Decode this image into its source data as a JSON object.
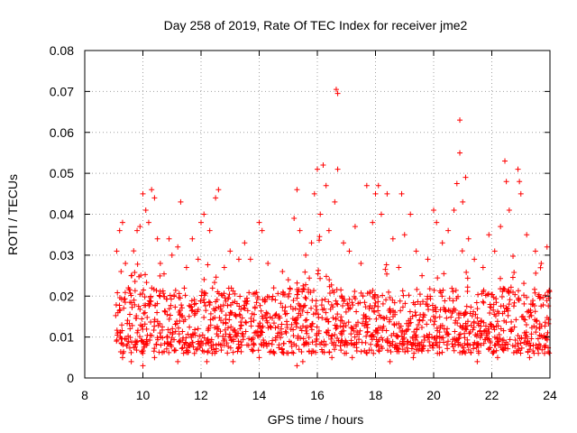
{
  "chart_data": {
    "type": "scatter",
    "title": "Day 258 of 2019, Rate Of TEC Index for receiver jme2",
    "xlabel": "GPS time / hours",
    "ylabel": "ROTI / TECUs",
    "xlim": [
      8,
      24
    ],
    "ylim": [
      0,
      0.08
    ],
    "x_ticks": [
      "8",
      "10",
      "12",
      "14",
      "16",
      "18",
      "20",
      "22",
      "24"
    ],
    "y_ticks": [
      "0",
      "0.01",
      "0.02",
      "0.03",
      "0.04",
      "0.05",
      "0.06",
      "0.07",
      "0.08"
    ],
    "grid": true,
    "marker": "+",
    "color": "#ff0000",
    "series": [
      {
        "name": "ROTI",
        "points": [
          [
            9.1,
            0.031
          ],
          [
            9.2,
            0.036
          ],
          [
            9.3,
            0.038
          ],
          [
            9.25,
            0.026
          ],
          [
            9.4,
            0.028
          ],
          [
            9.5,
            0.022
          ],
          [
            9.6,
            0.025
          ],
          [
            9.8,
            0.036
          ],
          [
            9.9,
            0.037
          ],
          [
            10.0,
            0.045
          ],
          [
            10.1,
            0.041
          ],
          [
            10.3,
            0.046
          ],
          [
            10.4,
            0.044
          ],
          [
            10.5,
            0.034
          ],
          [
            10.2,
            0.038
          ],
          [
            10.6,
            0.028
          ],
          [
            10.9,
            0.034
          ],
          [
            11.0,
            0.03
          ],
          [
            11.3,
            0.043
          ],
          [
            11.2,
            0.032
          ],
          [
            11.5,
            0.027
          ],
          [
            11.7,
            0.034
          ],
          [
            11.9,
            0.029
          ],
          [
            12.0,
            0.038
          ],
          [
            12.1,
            0.04
          ],
          [
            12.3,
            0.036
          ],
          [
            12.5,
            0.044
          ],
          [
            12.6,
            0.046
          ],
          [
            12.8,
            0.027
          ],
          [
            13.0,
            0.031
          ],
          [
            13.3,
            0.029
          ],
          [
            13.5,
            0.033
          ],
          [
            13.7,
            0.029
          ],
          [
            14.0,
            0.038
          ],
          [
            14.1,
            0.036
          ],
          [
            14.3,
            0.028
          ],
          [
            14.5,
            0.022
          ],
          [
            14.8,
            0.026
          ],
          [
            15.0,
            0.024
          ],
          [
            15.2,
            0.039
          ],
          [
            15.3,
            0.046
          ],
          [
            15.4,
            0.036
          ],
          [
            15.6,
            0.03
          ],
          [
            15.8,
            0.033
          ],
          [
            15.9,
            0.045
          ],
          [
            16.0,
            0.051
          ],
          [
            16.1,
            0.04
          ],
          [
            16.2,
            0.052
          ],
          [
            16.3,
            0.047
          ],
          [
            16.4,
            0.036
          ],
          [
            16.6,
            0.043
          ],
          [
            16.65,
            0.0705
          ],
          [
            16.7,
            0.0695
          ],
          [
            16.7,
            0.051
          ],
          [
            16.9,
            0.033
          ],
          [
            17.1,
            0.031
          ],
          [
            17.3,
            0.037
          ],
          [
            17.5,
            0.028
          ],
          [
            17.7,
            0.047
          ],
          [
            17.9,
            0.038
          ],
          [
            18.0,
            0.045
          ],
          [
            18.1,
            0.047
          ],
          [
            18.2,
            0.04
          ],
          [
            18.4,
            0.045
          ],
          [
            18.6,
            0.034
          ],
          [
            18.8,
            0.027
          ],
          [
            18.9,
            0.045
          ],
          [
            19.0,
            0.035
          ],
          [
            19.2,
            0.04
          ],
          [
            19.4,
            0.031
          ],
          [
            19.6,
            0.025
          ],
          [
            19.8,
            0.029
          ],
          [
            20.0,
            0.041
          ],
          [
            20.1,
            0.038
          ],
          [
            20.3,
            0.033
          ],
          [
            20.5,
            0.036
          ],
          [
            20.7,
            0.041
          ],
          [
            20.8,
            0.0475
          ],
          [
            20.9,
            0.063
          ],
          [
            20.9,
            0.055
          ],
          [
            21.0,
            0.043
          ],
          [
            21.1,
            0.049
          ],
          [
            21.2,
            0.034
          ],
          [
            21.4,
            0.029
          ],
          [
            21.7,
            0.027
          ],
          [
            21.9,
            0.035
          ],
          [
            22.1,
            0.031
          ],
          [
            22.3,
            0.037
          ],
          [
            22.45,
            0.053
          ],
          [
            22.5,
            0.048
          ],
          [
            22.6,
            0.041
          ],
          [
            22.9,
            0.051
          ],
          [
            22.95,
            0.048
          ],
          [
            23.0,
            0.045
          ],
          [
            23.2,
            0.035
          ],
          [
            23.5,
            0.031
          ],
          [
            23.7,
            0.028
          ],
          [
            23.9,
            0.032
          ],
          [
            9.3,
            0.005
          ],
          [
            9.6,
            0.004
          ],
          [
            10.0,
            0.003
          ],
          [
            10.4,
            0.005
          ],
          [
            11.2,
            0.004
          ],
          [
            12.2,
            0.004
          ],
          [
            13.1,
            0.004
          ],
          [
            14.0,
            0.005
          ],
          [
            15.3,
            0.003
          ],
          [
            15.5,
            0.004
          ],
          [
            16.5,
            0.005
          ],
          [
            17.2,
            0.005
          ],
          [
            18.5,
            0.004
          ],
          [
            19.3,
            0.005
          ],
          [
            20.2,
            0.006
          ],
          [
            21.5,
            0.004
          ],
          [
            22.2,
            0.005
          ],
          [
            23.3,
            0.005
          ]
        ]
      }
    ],
    "band_note": "dense cloud of points between about 0.005 and 0.025 TECU from 9 to 24 h"
  }
}
